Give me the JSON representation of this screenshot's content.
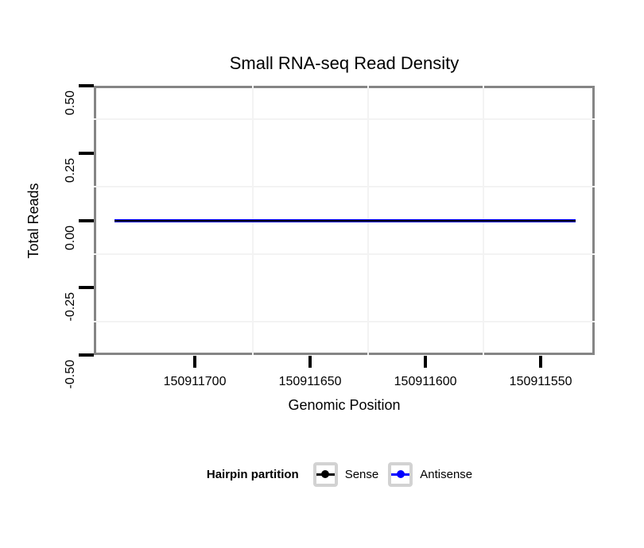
{
  "chart": {
    "title": "Small RNA-seq Read Density",
    "xlabel": "Genomic Position",
    "ylabel": "Total Reads"
  },
  "chart_data": {
    "type": "line",
    "title": "Small RNA-seq Read Density",
    "xlabel": "Genomic Position",
    "ylabel": "Total Reads",
    "x_axis": {
      "reversed": true,
      "domain": [
        150911526.6,
        150911743.8
      ],
      "ticks": [
        150911700,
        150911650,
        150911600,
        150911550
      ],
      "tick_labels": [
        "150911700",
        "150911650",
        "150911600",
        "150911550"
      ]
    },
    "y_axis": {
      "domain": [
        -0.5,
        0.5
      ],
      "ticks": [
        0.5,
        0.25,
        0,
        -0.25,
        -0.5
      ],
      "tick_labels": [
        "0.50",
        "0.25",
        "0.00",
        "-0.25",
        "-0.50"
      ]
    },
    "series": [
      {
        "name": "Sense",
        "color": "#000000",
        "x": [
          150911735,
          150911535
        ],
        "y": [
          0,
          0
        ]
      },
      {
        "name": "Antisense",
        "color": "#0000ff",
        "x": [
          150911735,
          150911535
        ],
        "y": [
          0,
          0
        ]
      }
    ],
    "grid": "minor gridlines only (very light gray), white panel background, gray panel border",
    "legend_position": "bottom"
  },
  "legend": {
    "title": "Hairpin partition",
    "items": [
      {
        "label": "Sense",
        "color": "#000000"
      },
      {
        "label": "Antisense",
        "color": "#0000ff"
      }
    ]
  },
  "colors": {
    "panel_border": "#858585",
    "minor_grid": "#f3f3f3",
    "tick_mark": "#000000",
    "legend_key_border": "#d2d2d2",
    "sense": "#000000",
    "antisense": "#0000ff"
  }
}
